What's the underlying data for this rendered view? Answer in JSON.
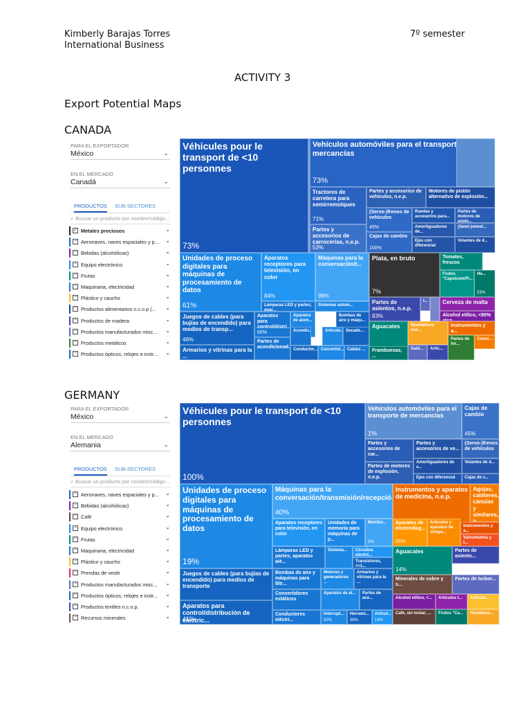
{
  "header": {
    "name": "Kimberly Barajas Torres",
    "program": "International Business",
    "semester": "7º semester",
    "activity": "ACTIVITY 3",
    "subtitle": "Export Potential Maps"
  },
  "canada": {
    "heading": "CANADA",
    "panel": {
      "exporter_label": "PARA EL EXPORTADOR",
      "exporter_value": "México",
      "market_label": "EN EL MERCADO",
      "market_value": "Canadá",
      "tab_products": "PRODUCTOS",
      "tab_subsectors": "SUB-SECTORES",
      "search_placeholder": "Buscar un producto por nombre/código...",
      "items": [
        {
          "label": "Metales preciosos",
          "color": "#222222",
          "check": "✓",
          "bold": true
        },
        {
          "label": "Aeronaves, naves espaciales y p...",
          "color": "#1565c0",
          "check": "−"
        },
        {
          "label": "Bebidas (alcohólicas)",
          "color": "#7b1fa2",
          "check": "−"
        },
        {
          "label": "Equipo electrónico",
          "color": "#1e88e5",
          "check": "−"
        },
        {
          "label": "Frutas",
          "color": "#00897b",
          "check": "−"
        },
        {
          "label": "Maquinaria, electricidad",
          "color": "#1976d2",
          "check": "−"
        },
        {
          "label": "Plástico y caucho",
          "color": "#fbc02d",
          "check": "−"
        },
        {
          "label": "Productos alimentarios n.c.o.p (...",
          "color": "#0d47a1",
          "check": "−"
        },
        {
          "label": "Productos de madera",
          "color": "#3949ab",
          "check": "−"
        },
        {
          "label": "Productos manufacturados misc...",
          "color": "#5c6bc0",
          "check": "−"
        },
        {
          "label": "Productos metálicos",
          "color": "#2e7d32",
          "check": "−"
        },
        {
          "label": "Productos ópticos, relojes e instr...",
          "color": "#1565c0",
          "check": "−"
        }
      ]
    },
    "treemap": {
      "cells": [
        {
          "name": "Véhicules pour le transport de <10 personnes",
          "value": "73%",
          "color": "#1a56b8"
        },
        {
          "name": "",
          "value": "",
          "color": "#4a78c6"
        },
        {
          "name": "Vehículos automóviles para el transporte de mercancías",
          "value": "73%",
          "color": "#2764c4"
        },
        {
          "name": "",
          "value": "",
          "color": "#5b8fd2"
        },
        {
          "name": "Tractores de carretera para semirremolques",
          "value": "71%",
          "color": "#2a63bf"
        },
        {
          "name": "Partes y accesorios de vehículos, n.e.p.",
          "value": "",
          "color": "#2d5fb3"
        },
        {
          "name": "Motores de pistón alternativo de explosión...",
          "value": "",
          "color": "#1f4fa3"
        },
        {
          "name": "(Servo-)frenos de vehículos",
          "value": "45%",
          "color": "#2f6ac6"
        },
        {
          "name": "Ruedas y accesorios para...",
          "value": "",
          "color": "#1f56b0"
        },
        {
          "name": "Partes de motores de explo...",
          "value": "",
          "color": "#2a5db5"
        },
        {
          "name": "Partes y accesorios de carrocerías, n.e.p.",
          "value": "53%",
          "color": "#3a72c8"
        },
        {
          "name": "Amortiguadores de...",
          "value": "",
          "color": "#2557ac"
        },
        {
          "name": "(Semi-)remol...",
          "value": "",
          "color": "#3569bd"
        },
        {
          "name": "Cajas de cambio",
          "value": "100%",
          "color": "#2f6ac6"
        },
        {
          "name": "Ejes con diferencial",
          "value": "",
          "color": "#2354a8"
        },
        {
          "name": "Volantes de d...",
          "value": "",
          "color": "#1f4fa3"
        },
        {
          "name": "Unidades de proceso digitales para máquinas de procesamiento de datos",
          "value": "61%",
          "color": "#1e88e5"
        },
        {
          "name": "Aparatos receptores para televisión, en color",
          "value": "84%",
          "color": "#2196f3"
        },
        {
          "name": "Máquinas para la conversación/t...",
          "value": "99%",
          "color": "#42a5f5"
        },
        {
          "name": "Lámparas LED y partes; apar...",
          "value": "",
          "color": "#1976d2"
        },
        {
          "name": "Sistemas autom...",
          "value": "",
          "color": "#1e88e5"
        },
        {
          "name": "Plata, en bruto",
          "value": "7%",
          "color": "#333333"
        },
        {
          "name": "Tomates, frescos",
          "value": "",
          "color": "#00897b"
        },
        {
          "name": "Frutos \"Capsicum/Pi...",
          "value": "",
          "color": "#009688"
        },
        {
          "name": "He...",
          "value": "53%",
          "color": "#00796b"
        },
        {
          "name": "Juegos de cables (para bujías de encendido) para medios de transp...",
          "value": "46%",
          "color": "#1565c0"
        },
        {
          "name": "Aparatos para control/distri...",
          "value": "65%",
          "color": "#1976d2"
        },
        {
          "name": "Aparatos de alum...",
          "value": "",
          "color": "#1e88e5"
        },
        {
          "name": "Bombas de aire y máqu...",
          "value": "",
          "color": "#1565c0"
        },
        {
          "name": "Acondic...",
          "value": "",
          "color": "#1976d2"
        },
        {
          "name": "Artículo...",
          "value": "",
          "color": "#1e88e5"
        },
        {
          "name": "Secado...",
          "value": "",
          "color": "#1565c0"
        },
        {
          "name": "Partes de acondicionad...",
          "value": "",
          "color": "#1976d2"
        },
        {
          "name": "Conductor...",
          "value": "",
          "color": "#1565c0"
        },
        {
          "name": "Convertid...",
          "value": "",
          "color": "#1e88e5"
        },
        {
          "name": "Cables ...",
          "value": "",
          "color": "#1976d2"
        },
        {
          "name": "Armarios y vitrinas para la ...",
          "value": "",
          "color": "#1565c0"
        },
        {
          "name": "Partes de asientos, n.e.p.",
          "value": "83%",
          "color": "#3949ab"
        },
        {
          "name": "I...",
          "value": "",
          "color": "#5c6bc0"
        },
        {
          "name": "",
          "value": "",
          "color": "#7986cb"
        },
        {
          "name": "Cerveza de malta",
          "value": "",
          "color": "#8e24aa"
        },
        {
          "name": "Alcohol etílico, <80% alco...",
          "value": "",
          "color": "#7b1fa2"
        },
        {
          "name": "Aguacates",
          "value": "96%",
          "color": "#00897b"
        },
        {
          "name": "Frambuesas, ...",
          "value": "",
          "color": "#00796b"
        },
        {
          "name": "Neumáticos nue...",
          "value": "",
          "color": "#f9a825"
        },
        {
          "name": "Artículos de p...",
          "value": "",
          "color": "#fbc02d"
        },
        {
          "name": "Instrumentos y a...",
          "value": "",
          "color": "#ef6c00"
        },
        {
          "name": "Partes de tor...",
          "value": "",
          "color": "#2e7d32"
        },
        {
          "name": "Const...",
          "value": "",
          "color": "#f57c00"
        },
        {
          "name": "Gabi...",
          "value": "",
          "color": "#5c6bc0"
        },
        {
          "name": "Artíc...",
          "value": "",
          "color": "#3949ab"
        }
      ]
    }
  },
  "germany": {
    "heading": "GERMANY",
    "panel": {
      "exporter_label": "PARA EL EXPORTADOR",
      "exporter_value": "México",
      "market_label": "EN EL MERCADO",
      "market_value": "Alemania",
      "tab_products": "PRODUCTOS",
      "tab_subsectors": "SUB-SECTORES",
      "search_placeholder": "Buscar un producto por nombre/código...",
      "items": [
        {
          "label": "Aeronaves, naves espaciales y p...",
          "color": "#1565c0",
          "check": "−"
        },
        {
          "label": "Bebidas (alcohólicas)",
          "color": "#7b1fa2",
          "check": "−"
        },
        {
          "label": "Café",
          "color": "#5d4037",
          "check": "−"
        },
        {
          "label": "Equipo electrónico",
          "color": "#1e88e5",
          "check": "−"
        },
        {
          "label": "Frutas",
          "color": "#00897b",
          "check": "−"
        },
        {
          "label": "Maquinaria, electricidad",
          "color": "#1976d2",
          "check": "−"
        },
        {
          "label": "Plástico y caucho",
          "color": "#fbc02d",
          "check": "−"
        },
        {
          "label": "Prendas de vestir",
          "color": "#e91e63",
          "check": "−"
        },
        {
          "label": "Productos manufacturados misc...",
          "color": "#5c6bc0",
          "check": "−"
        },
        {
          "label": "Productos ópticos, relojes e instr...",
          "color": "#1565c0",
          "check": "−"
        },
        {
          "label": "Productos textiles n.c.o.p.",
          "color": "#3949ab",
          "check": "−"
        },
        {
          "label": "Recursos minerales",
          "color": "#6d4c41",
          "check": "−"
        }
      ]
    },
    "treemap": {
      "cells": [
        {
          "name": "Véhicules pour le transport de <10 personnes",
          "value": "100%",
          "color": "#1a56b8"
        },
        {
          "name": "Vehículos automóviles para el transporte de mercancías",
          "value": "1%",
          "color": "#5b8fd2"
        },
        {
          "name": "Cajas de cambio",
          "value": "45%",
          "color": "#3a72c8"
        },
        {
          "name": "Partes y accesorios de car...",
          "value": "",
          "color": "#2a5db5"
        },
        {
          "name": "Partes y accesorios de ve...",
          "value": "",
          "color": "#2354a8"
        },
        {
          "name": "(Servo-)frenos de vehículos",
          "value": "",
          "color": "#3569bd"
        },
        {
          "name": "Amortiguadores de s...",
          "value": "",
          "color": "#1f4fa3"
        },
        {
          "name": "Volantes de d...",
          "value": "",
          "color": "#2557ac"
        },
        {
          "name": "Partes de motores de explosión, n.e.p.",
          "value": "",
          "color": "#2d5fb3"
        },
        {
          "name": "Ejes con diferencial",
          "value": "",
          "color": "#1f56b0"
        },
        {
          "name": "Cajas de c...",
          "value": "",
          "color": "#2a5db5"
        },
        {
          "name": "Unidades de proceso digitales para máquinas de procesamiento de datos",
          "value": "19%",
          "color": "#1e88e5"
        },
        {
          "name": "Máquinas para la conversación/transmisión/recepció...",
          "value": "40%",
          "color": "#42a5f5"
        },
        {
          "name": "Aparatos receptores para televisión, en color",
          "value": "",
          "color": "#2196f3"
        },
        {
          "name": "Unidades de memoria para máquinas de p...",
          "value": "",
          "color": "#1e88e5"
        },
        {
          "name": "Monitor...",
          "value": "3%",
          "color": "#42a5f5"
        },
        {
          "name": "Lámparas LED y partes; aparatos alé...",
          "value": "",
          "color": "#1976d2"
        },
        {
          "name": "Sistema...",
          "value": "",
          "color": "#1e88e5"
        },
        {
          "name": "Circuitos electró...",
          "value": "",
          "color": "#2196f3"
        },
        {
          "name": "Transistores, >=1...",
          "value": "",
          "color": "#1565c0"
        },
        {
          "name": "Instrumentos y aparatos de medicina, n.e.p.",
          "value": "39%",
          "color": "#ef6c00"
        },
        {
          "name": "Agujas, catéteres, cánulas y similares, p...",
          "value": "",
          "color": "#f57c00"
        },
        {
          "name": "Aparatos de electrodiag...",
          "value": "26%",
          "color": "#ff9800"
        },
        {
          "name": "Artículos y aparatos de ortope...",
          "value": "",
          "color": "#fb8c00"
        },
        {
          "name": "Instrumentos y a...",
          "value": "",
          "color": "#e65100"
        },
        {
          "name": "Válvulmetría y t...",
          "value": "",
          "color": "#f4511e"
        },
        {
          "name": "Juegos de cables (para bujías de encendido) para medios de transporte",
          "value": "",
          "color": "#1565c0"
        },
        {
          "name": "Bombas de aire y máquinas para filtr...",
          "value": "",
          "color": "#1976d2"
        },
        {
          "name": "Motores y generadores ...",
          "value": "",
          "color": "#1e88e5"
        },
        {
          "name": "Armarios y vitrinas para la ...",
          "value": "",
          "color": "#1565c0"
        },
        {
          "name": "Convertidores estáticos",
          "value": "",
          "color": "#1976d2"
        },
        {
          "name": "Aparatos de al...",
          "value": "",
          "color": "#1e88e5"
        },
        {
          "name": "Partes de aco...",
          "value": "",
          "color": "#1565c0"
        },
        {
          "name": "Aparatos para control/distribución de electric...",
          "value": "41%",
          "color": "#1565c0"
        },
        {
          "name": "Conductores eléctri...",
          "value": "",
          "color": "#1976d2"
        },
        {
          "name": "Interrupt...",
          "value": "52%",
          "color": "#1e88e5"
        },
        {
          "name": "Herrami...",
          "value": "36%",
          "color": "#1565c0"
        },
        {
          "name": "Artícul...",
          "value": "13%",
          "color": "#2196f3"
        },
        {
          "name": "Aguacates",
          "value": "14%",
          "color": "#00897b"
        },
        {
          "name": "Partes de asiento...",
          "value": "",
          "color": "#3949ab"
        },
        {
          "name": "Minerales de cobre y s...",
          "value": "",
          "color": "#6d4c41"
        },
        {
          "name": "Partes de turbor...",
          "value": "",
          "color": "#5c6bc0"
        },
        {
          "name": "Alcohol etílico, <...",
          "value": "",
          "color": "#7b1fa2"
        },
        {
          "name": "Artículos t...",
          "value": "",
          "color": "#8e24aa"
        },
        {
          "name": "Artículo...",
          "value": "",
          "color": "#fbc02d"
        },
        {
          "name": "Café, sin tostar, ...",
          "value": "",
          "color": "#5d4037"
        },
        {
          "name": "Frutos \"Ca...",
          "value": "",
          "color": "#00796b"
        },
        {
          "name": "Hortalizas...",
          "value": "",
          "color": "#f9a825"
        }
      ]
    }
  }
}
